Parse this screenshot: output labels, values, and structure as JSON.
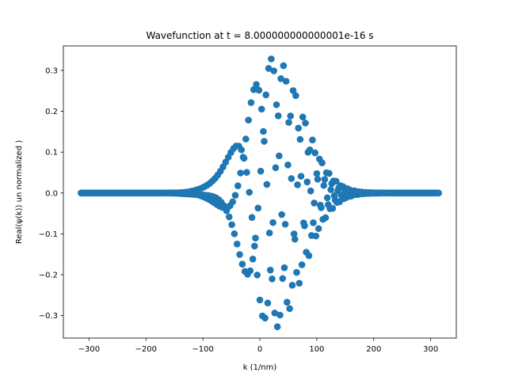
{
  "chart_data": {
    "type": "scatter",
    "title": "Wavefunction at t = 8.000000000000001e-16 s",
    "xlabel": "k (1/nm)",
    "ylabel": "Real(ψ(k)) un normalized )",
    "xlim": [
      -345,
      345
    ],
    "ylim": [
      -0.355,
      0.36
    ],
    "xticks": [
      -300,
      -200,
      -100,
      0,
      100,
      200,
      300
    ],
    "xtick_labels": [
      "−300",
      "−200",
      "−100",
      "0",
      "100",
      "200",
      "300"
    ],
    "yticks": [
      -0.3,
      -0.2,
      -0.1,
      0.0,
      0.1,
      0.2,
      0.3
    ],
    "ytick_labels": [
      "−0.3",
      "−0.2",
      "−0.1",
      "0.0",
      "0.1",
      "0.2",
      "0.3"
    ],
    "grid": false,
    "legend": false,
    "marker_color": "#1f77b4",
    "series": [
      {
        "description": "Gaussian wave packet, Re(psi(k)) sampled at k = -314..314 (step ~1.54), centre ~25, envelope amplitude ~0.33, sigma ~70, oscillating phase",
        "k_min": -314,
        "k_max": 314,
        "n_points": 409,
        "envelope_amplitude": 0.33,
        "envelope_center": 25,
        "envelope_sigma": 70
      }
    ]
  }
}
